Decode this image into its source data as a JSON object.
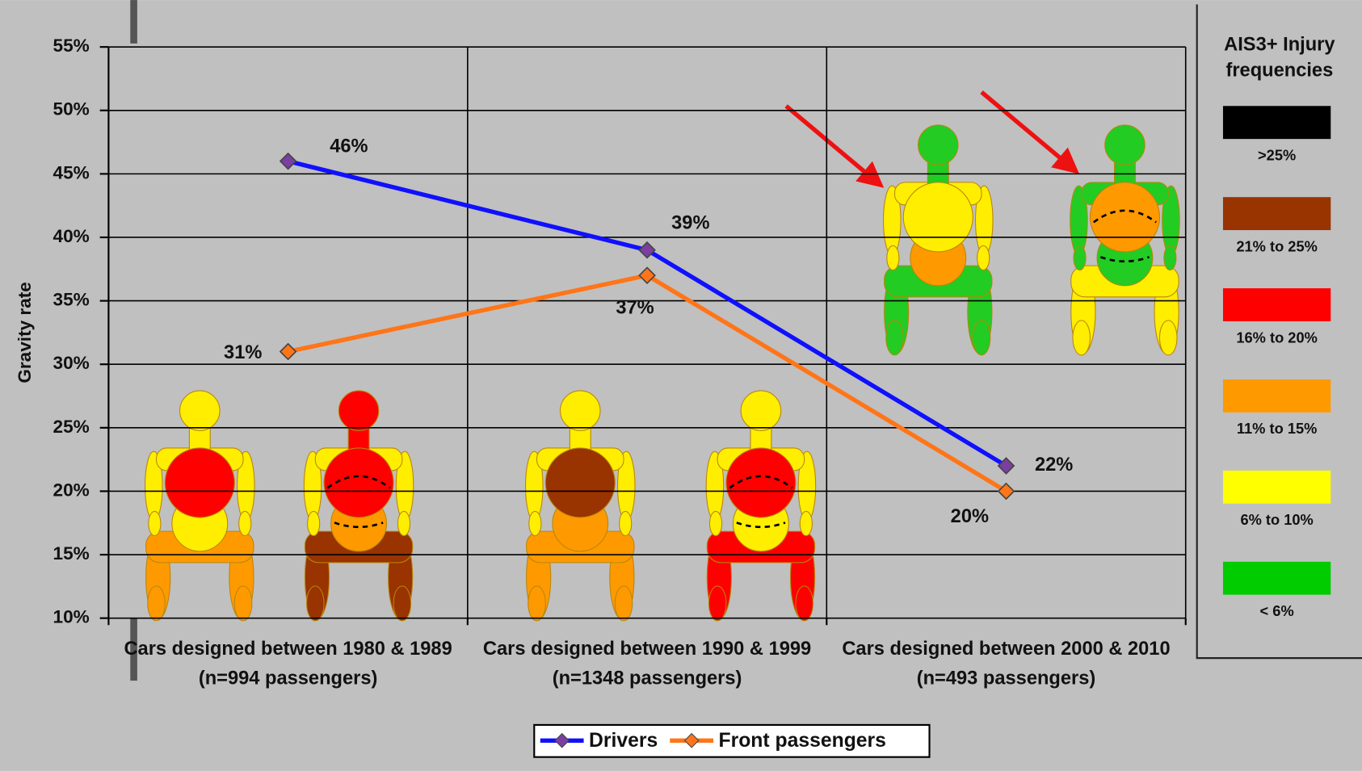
{
  "chart_data": {
    "type": "line",
    "y_label": "Gravity rate",
    "categories": [
      "Cars designed between 1980 & 1989 (n=994 passengers)",
      "Cars designed between 1990 & 1999 (n=1348 passengers)",
      "Cars designed between 2000 & 2010 (n=493 passengers)"
    ],
    "series": [
      {
        "name": "Drivers",
        "color": "#1010ff",
        "marker_color": "#7a3fa0",
        "values": [
          46,
          39,
          22
        ],
        "value_labels": [
          "46%",
          "39%",
          "22%"
        ]
      },
      {
        "name": "Front passengers",
        "color": "#ff7518",
        "marker_color": "#ff7518",
        "values": [
          31,
          37,
          20
        ],
        "value_labels": [
          "31%",
          "37%",
          "20%"
        ]
      }
    ],
    "ylim": [
      10,
      55
    ],
    "yticks": [
      {
        "value": 10,
        "label": "10%"
      },
      {
        "value": 15,
        "label": "15%"
      },
      {
        "value": 20,
        "label": "20%"
      },
      {
        "value": 25,
        "label": "25%"
      },
      {
        "value": 30,
        "label": "30%"
      },
      {
        "value": 35,
        "label": "35%"
      },
      {
        "value": 40,
        "label": "40%"
      },
      {
        "value": 45,
        "label": "45%"
      },
      {
        "value": 50,
        "label": "50%"
      },
      {
        "value": 55,
        "label": "55%"
      }
    ],
    "grid": true,
    "legend": "bottom",
    "injury_legend": {
      "title": "AIS3+ Injury frequencies",
      "items": [
        {
          "label": ">25%",
          "color": "#000000"
        },
        {
          "label": "21% to 25%",
          "color": "#993300"
        },
        {
          "label": "16% to 20%",
          "color": "#ff0000"
        },
        {
          "label": "11% to 15%",
          "color": "#ff9900"
        },
        {
          "label": "6% to 10%",
          "color": "#ffff00"
        },
        {
          "label": "< 6%",
          "color": "#00cc00"
        }
      ]
    }
  }
}
